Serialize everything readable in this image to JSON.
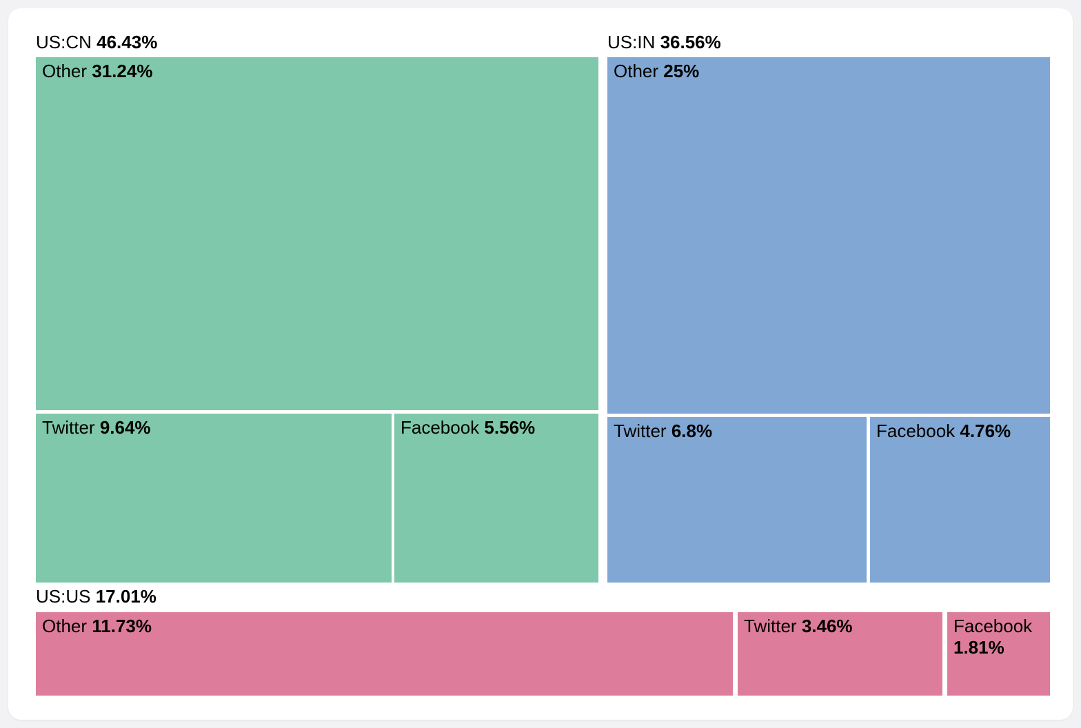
{
  "chart_data": {
    "type": "treemap",
    "title": "",
    "legend": "none",
    "unit": "%",
    "groups": [
      {
        "label": "US:CN",
        "value": 46.43,
        "value_label": "46.43%",
        "color": "#7FC8AC",
        "children": [
          {
            "label": "Other",
            "value": 31.24,
            "value_label": "31.24%"
          },
          {
            "label": "Twitter",
            "value": 9.64,
            "value_label": "9.64%"
          },
          {
            "label": "Facebook",
            "value": 5.56,
            "value_label": "5.56%"
          }
        ]
      },
      {
        "label": "US:IN",
        "value": 36.56,
        "value_label": "36.56%",
        "color": "#81A8D4",
        "children": [
          {
            "label": "Other",
            "value": 25,
            "value_label": "25%"
          },
          {
            "label": "Twitter",
            "value": 6.8,
            "value_label": "6.8%"
          },
          {
            "label": "Facebook",
            "value": 4.76,
            "value_label": "4.76%"
          }
        ]
      },
      {
        "label": "US:US",
        "value": 17.01,
        "value_label": "17.01%",
        "color": "#DE7D9B",
        "children": [
          {
            "label": "Other",
            "value": 11.73,
            "value_label": "11.73%"
          },
          {
            "label": "Twitter",
            "value": 3.46,
            "value_label": "3.46%"
          },
          {
            "label": "Facebook",
            "value": 1.81,
            "value_label": "1.81%"
          }
        ]
      }
    ]
  },
  "colors": {
    "page_background": "#f2f2f4",
    "card_background": "#ffffff",
    "text": "#000000"
  }
}
